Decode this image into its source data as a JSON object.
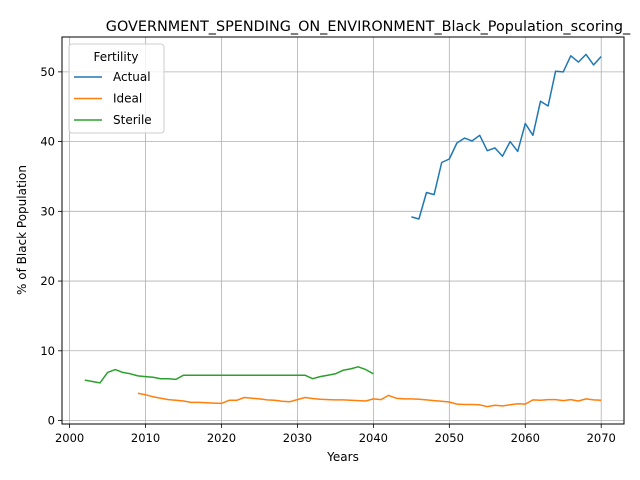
{
  "chart_data": {
    "type": "line",
    "title": "GOVERNMENT_SPENDING_ON_ENVIRONMENT_Black_Population_scoring_",
    "xlabel": "Years",
    "ylabel": "% of Black Population",
    "xlim": [
      1999,
      2073
    ],
    "ylim": [
      -0.5,
      55
    ],
    "xticks": [
      2000,
      2010,
      2020,
      2030,
      2040,
      2050,
      2060,
      2070
    ],
    "yticks": [
      0,
      10,
      20,
      30,
      40,
      50
    ],
    "grid": true,
    "legend": {
      "title": "Fertility",
      "position": "upper-left"
    },
    "series": [
      {
        "name": "Actual",
        "color": "#1f77b4",
        "x": [
          2045,
          2046,
          2047,
          2048,
          2049,
          2050,
          2051,
          2052,
          2053,
          2054,
          2055,
          2056,
          2057,
          2058,
          2059,
          2060,
          2061,
          2062,
          2063,
          2064,
          2065,
          2066,
          2067,
          2068,
          2069,
          2070
        ],
        "y": [
          29.2,
          28.9,
          32.7,
          32.4,
          37.0,
          37.5,
          39.8,
          40.5,
          40.1,
          40.9,
          38.7,
          39.1,
          37.9,
          40.0,
          38.6,
          42.6,
          40.9,
          45.8,
          45.1,
          50.1,
          50.0,
          52.3,
          51.4,
          52.5,
          51.0,
          52.2
        ]
      },
      {
        "name": "Ideal",
        "color": "#ff7f0e",
        "x": [
          2009,
          2010,
          2011,
          2012,
          2013,
          2014,
          2015,
          2016,
          2017,
          2018,
          2019,
          2020,
          2021,
          2022,
          2023,
          2024,
          2025,
          2026,
          2027,
          2028,
          2029,
          2030,
          2031,
          2032,
          2033,
          2034,
          2035,
          2036,
          2037,
          2038,
          2039,
          2040,
          2041,
          2042,
          2043,
          2044,
          2045,
          2046,
          2047,
          2048,
          2049,
          2050,
          2051,
          2052,
          2053,
          2054,
          2055,
          2056,
          2057,
          2058,
          2059,
          2060,
          2061,
          2062,
          2063,
          2064,
          2065,
          2066,
          2067,
          2068,
          2069,
          2070
        ],
        "y": [
          3.9,
          3.7,
          3.4,
          3.2,
          3.0,
          2.9,
          2.8,
          2.6,
          2.6,
          2.55,
          2.5,
          2.45,
          2.9,
          2.9,
          3.3,
          3.2,
          3.1,
          2.95,
          2.9,
          2.75,
          2.7,
          3.0,
          3.3,
          3.15,
          3.05,
          3.0,
          2.95,
          2.95,
          2.9,
          2.85,
          2.8,
          3.1,
          3.0,
          3.6,
          3.2,
          3.1,
          3.1,
          3.05,
          2.95,
          2.85,
          2.75,
          2.65,
          2.35,
          2.3,
          2.3,
          2.25,
          2.0,
          2.2,
          2.1,
          2.25,
          2.4,
          2.35,
          2.95,
          2.9,
          3.0,
          3.0,
          2.85,
          3.0,
          2.8,
          3.1,
          2.95,
          2.9
        ]
      },
      {
        "name": "Sterile",
        "color": "#2ca02c",
        "x": [
          2002,
          2003,
          2004,
          2005,
          2006,
          2007,
          2008,
          2009,
          2010,
          2011,
          2012,
          2013,
          2014,
          2015,
          2016,
          2017,
          2018,
          2019,
          2020,
          2021,
          2022,
          2023,
          2024,
          2025,
          2026,
          2027,
          2028,
          2029,
          2030,
          2031,
          2032,
          2033,
          2034,
          2035,
          2036,
          2037,
          2038,
          2039,
          2040
        ],
        "y": [
          5.8,
          5.6,
          5.4,
          6.9,
          7.3,
          6.9,
          6.7,
          6.4,
          6.3,
          6.2,
          6.0,
          6.0,
          5.9,
          6.5,
          6.5,
          6.5,
          6.5,
          6.5,
          6.5,
          6.5,
          6.5,
          6.5,
          6.5,
          6.5,
          6.5,
          6.5,
          6.5,
          6.5,
          6.5,
          6.5,
          6.0,
          6.3,
          6.5,
          6.7,
          7.2,
          7.4,
          7.7,
          7.3,
          6.7
        ]
      }
    ]
  }
}
